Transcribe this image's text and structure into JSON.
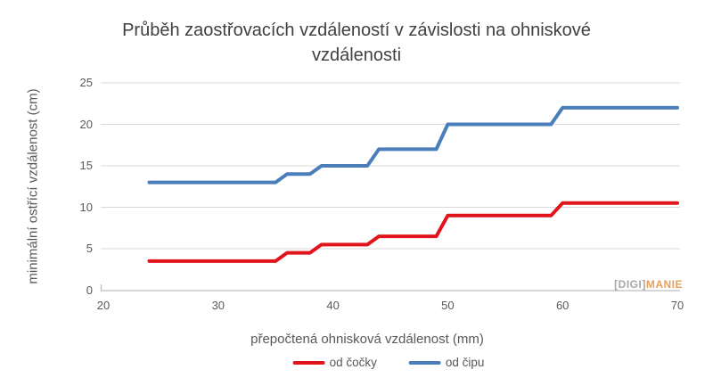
{
  "watermark": {
    "digi": "[DIGI]",
    "manie": "MANIE"
  },
  "chart_data": {
    "type": "line",
    "title": "Průběh zaostřovacích vzdáleností v závislosti na ohniskové vzdálenosti",
    "xlabel": "přepočtená ohnisková vzdálenost (mm)",
    "ylabel": "minimální ostřící vzdálenost (cm)",
    "xlim": [
      20,
      70
    ],
    "ylim": [
      0,
      25
    ],
    "x_ticks": [
      20,
      30,
      40,
      50,
      60,
      70
    ],
    "y_ticks": [
      0,
      5,
      10,
      15,
      20,
      25
    ],
    "grid": true,
    "legend_position": "bottom",
    "x": [
      24,
      35,
      36,
      38,
      39,
      43,
      44,
      49,
      50,
      59,
      60,
      70
    ],
    "series": [
      {
        "name": "od čočky",
        "color": "#e2141b",
        "values": [
          3.5,
          3.5,
          4.5,
          4.5,
          5.5,
          5.5,
          6.5,
          6.5,
          9,
          9,
          10.5,
          10.5
        ]
      },
      {
        "name": "od čipu",
        "color": "#4a7ebb",
        "values": [
          13,
          13,
          14,
          14,
          15,
          15,
          17,
          17,
          20,
          20,
          22,
          22
        ]
      }
    ],
    "colors": {
      "gridline": "#d9d9d9",
      "axis_line": "#bfbfbf",
      "tick_label": "#595959",
      "title": "#404040"
    }
  }
}
